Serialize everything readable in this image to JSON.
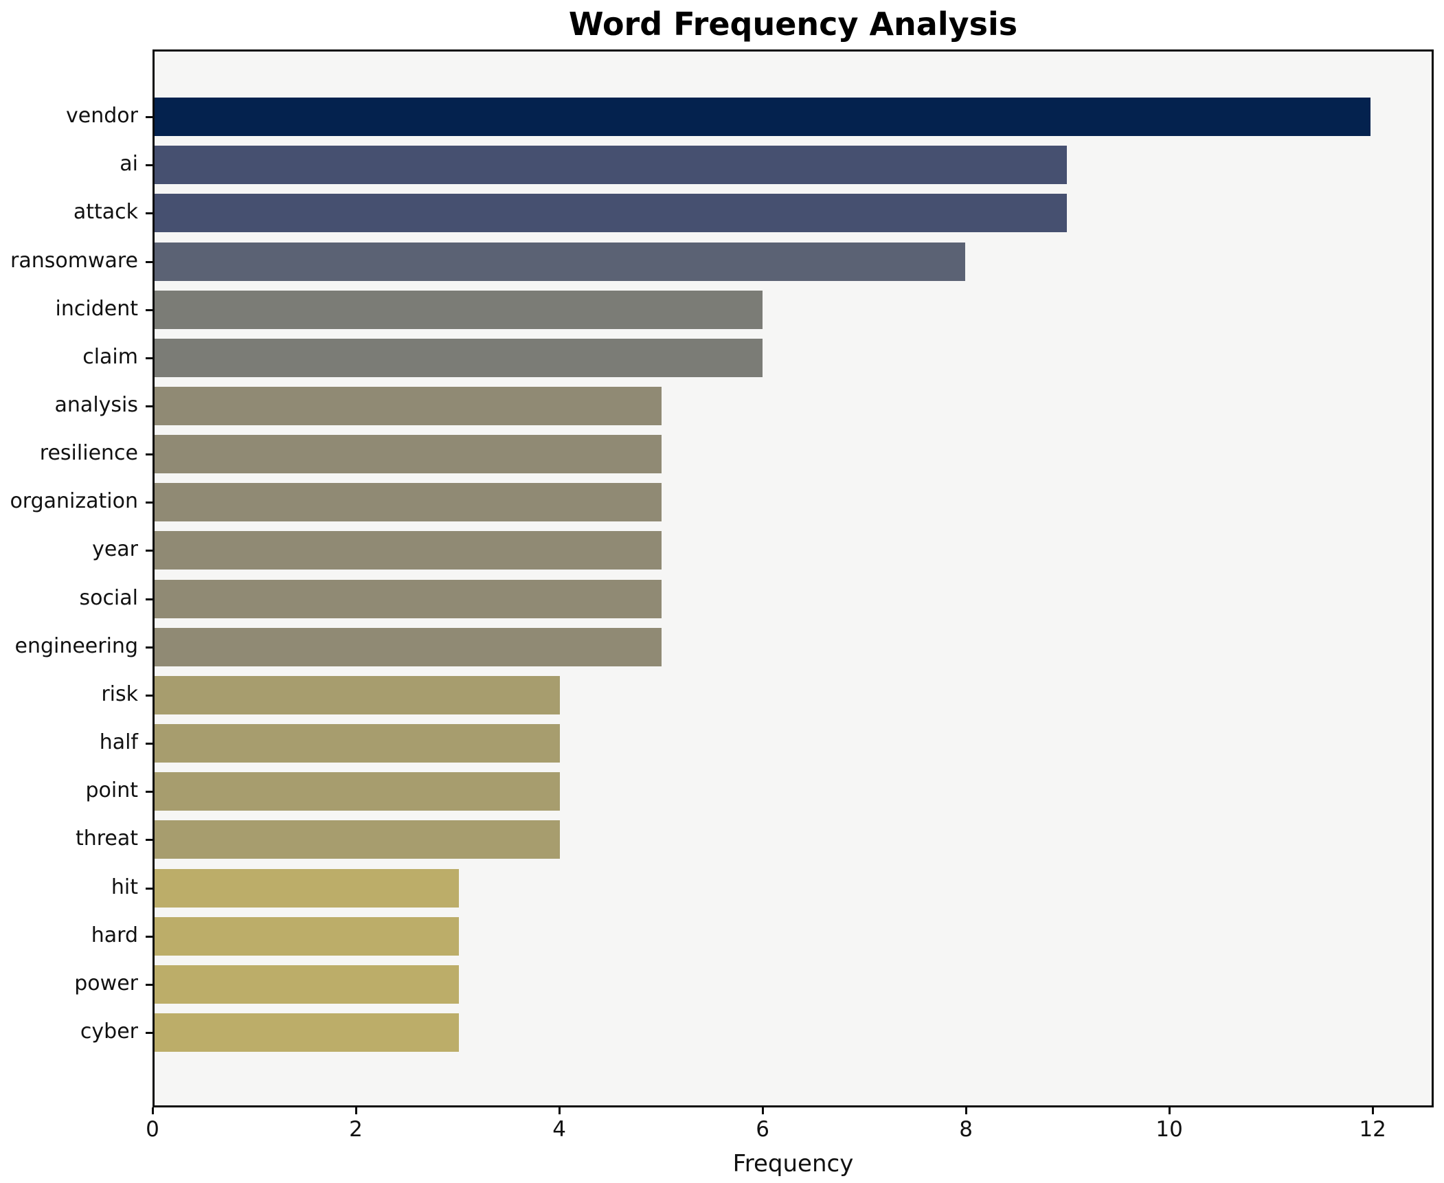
{
  "chart_data": {
    "type": "bar",
    "orientation": "horizontal",
    "title": "Word Frequency Analysis",
    "xlabel": "Frequency",
    "ylabel": "",
    "xlim": [
      0,
      12.6
    ],
    "xticks": [
      0,
      2,
      4,
      6,
      8,
      10,
      12
    ],
    "grid": false,
    "legend": null,
    "plot_background": "#f6f6f5",
    "spine_color": "#0a0a0a",
    "colormap": "cividis",
    "categories": [
      "vendor",
      "ai",
      "attack",
      "ransomware",
      "incident",
      "claim",
      "analysis",
      "resilience",
      "organization",
      "year",
      "social",
      "engineering",
      "risk",
      "half",
      "point",
      "threat",
      "hit",
      "hard",
      "power",
      "cyber"
    ],
    "values": [
      12,
      9,
      9,
      8,
      6,
      6,
      5,
      5,
      5,
      5,
      5,
      5,
      4,
      4,
      4,
      4,
      3,
      3,
      3,
      3
    ],
    "bar_colors": [
      "#04224e",
      "#465070",
      "#465070",
      "#5b6274",
      "#7b7c76",
      "#7b7c76",
      "#908a74",
      "#908a74",
      "#908a74",
      "#908a74",
      "#908a74",
      "#908a74",
      "#a79d6e",
      "#a79d6e",
      "#a79d6e",
      "#a79d6e",
      "#bcad69",
      "#bcad69",
      "#bcad69",
      "#bcad69"
    ]
  }
}
